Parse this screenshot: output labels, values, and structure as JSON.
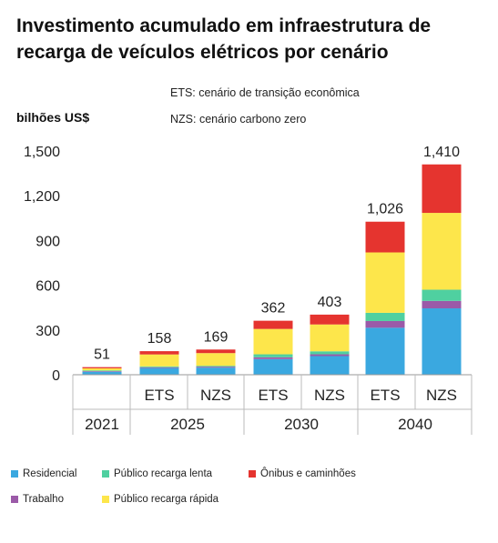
{
  "title": "Investimento acumulado em infraestrutura de recarga de veículos elétricos por cenário",
  "notes": {
    "ets": "ETS: cenário de transição econômica",
    "nzs": "NZS: cenário carbono zero"
  },
  "chart_data": {
    "type": "bar",
    "stacked": true,
    "title": "Investimento acumulado em infraestrutura de recarga de veículos elétricos por cenário",
    "ylabel": "bilhões US$",
    "ylim": [
      0,
      1500
    ],
    "yticks": [
      "0",
      "300",
      "600",
      "900",
      "1,200",
      "1,500"
    ],
    "grid": false,
    "legend_position": "bottom",
    "groups": [
      {
        "label": "2021",
        "bars": [
          ""
        ]
      },
      {
        "label": "2025",
        "bars": [
          "ETS",
          "NZS"
        ]
      },
      {
        "label": "2030",
        "bars": [
          "ETS",
          "NZS"
        ]
      },
      {
        "label": "2040",
        "bars": [
          "ETS",
          "NZS"
        ]
      }
    ],
    "totals": [
      "51",
      "158",
      "169",
      "362",
      "403",
      "1,026",
      "1,410"
    ],
    "series": [
      {
        "name": "Residencial",
        "color": "#3aa8e0",
        "values": [
          20,
          45,
          48,
          105,
          125,
          315,
          445
        ]
      },
      {
        "name": "Trabalho",
        "color": "#9b5aa8",
        "values": [
          4,
          5,
          6,
          12,
          12,
          45,
          50
        ]
      },
      {
        "name": "Público recarga lenta",
        "color": "#4fd0a0",
        "values": [
          5,
          6,
          6,
          20,
          20,
          55,
          75
        ]
      },
      {
        "name": "Público recarga rápida",
        "color": "#fde64b",
        "values": [
          14,
          80,
          85,
          170,
          180,
          405,
          515
        ]
      },
      {
        "name": "Ônibus e caminhões",
        "color": "#e5342f",
        "values": [
          8,
          22,
          24,
          55,
          66,
          206,
          325
        ]
      }
    ],
    "legend_layout": [
      {
        "series": 0,
        "col": 0,
        "row": 0
      },
      {
        "series": 2,
        "col": 1,
        "row": 0
      },
      {
        "series": 4,
        "col": 2,
        "row": 0
      },
      {
        "series": 1,
        "col": 0,
        "row": 1
      },
      {
        "series": 3,
        "col": 1,
        "row": 1
      }
    ]
  }
}
